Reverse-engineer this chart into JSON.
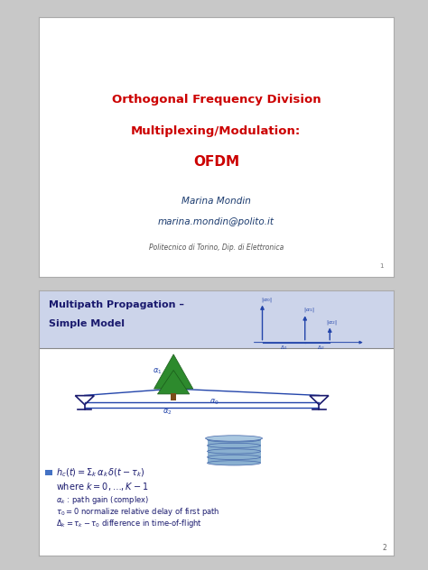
{
  "bg_color": "#c8c8c8",
  "slide1": {
    "title_line1": "Orthogonal Frequency Division",
    "title_line2": "Multiplexing/Modulation:",
    "title_line3": "OFDM",
    "title_color": "#cc0000",
    "author": "Marina Mondin",
    "email": "marina.mondin@polito.it",
    "affiliation": "Politecnico di Torino, Dip. di Elettronica",
    "author_color": "#1a3a6e",
    "affil_color": "#555555",
    "page_num": "1",
    "border_color": "#888888"
  },
  "slide2": {
    "title_line1": "Multipath Propagation –",
    "title_line2": "Simple Model",
    "title_color": "#1a1a6e",
    "title_bg": "#ccd4ea",
    "border_color": "#888888",
    "navy": "#1a1a6e",
    "blue": "#2244aa",
    "page_num": "2",
    "bullet_color": "#4472c4"
  }
}
